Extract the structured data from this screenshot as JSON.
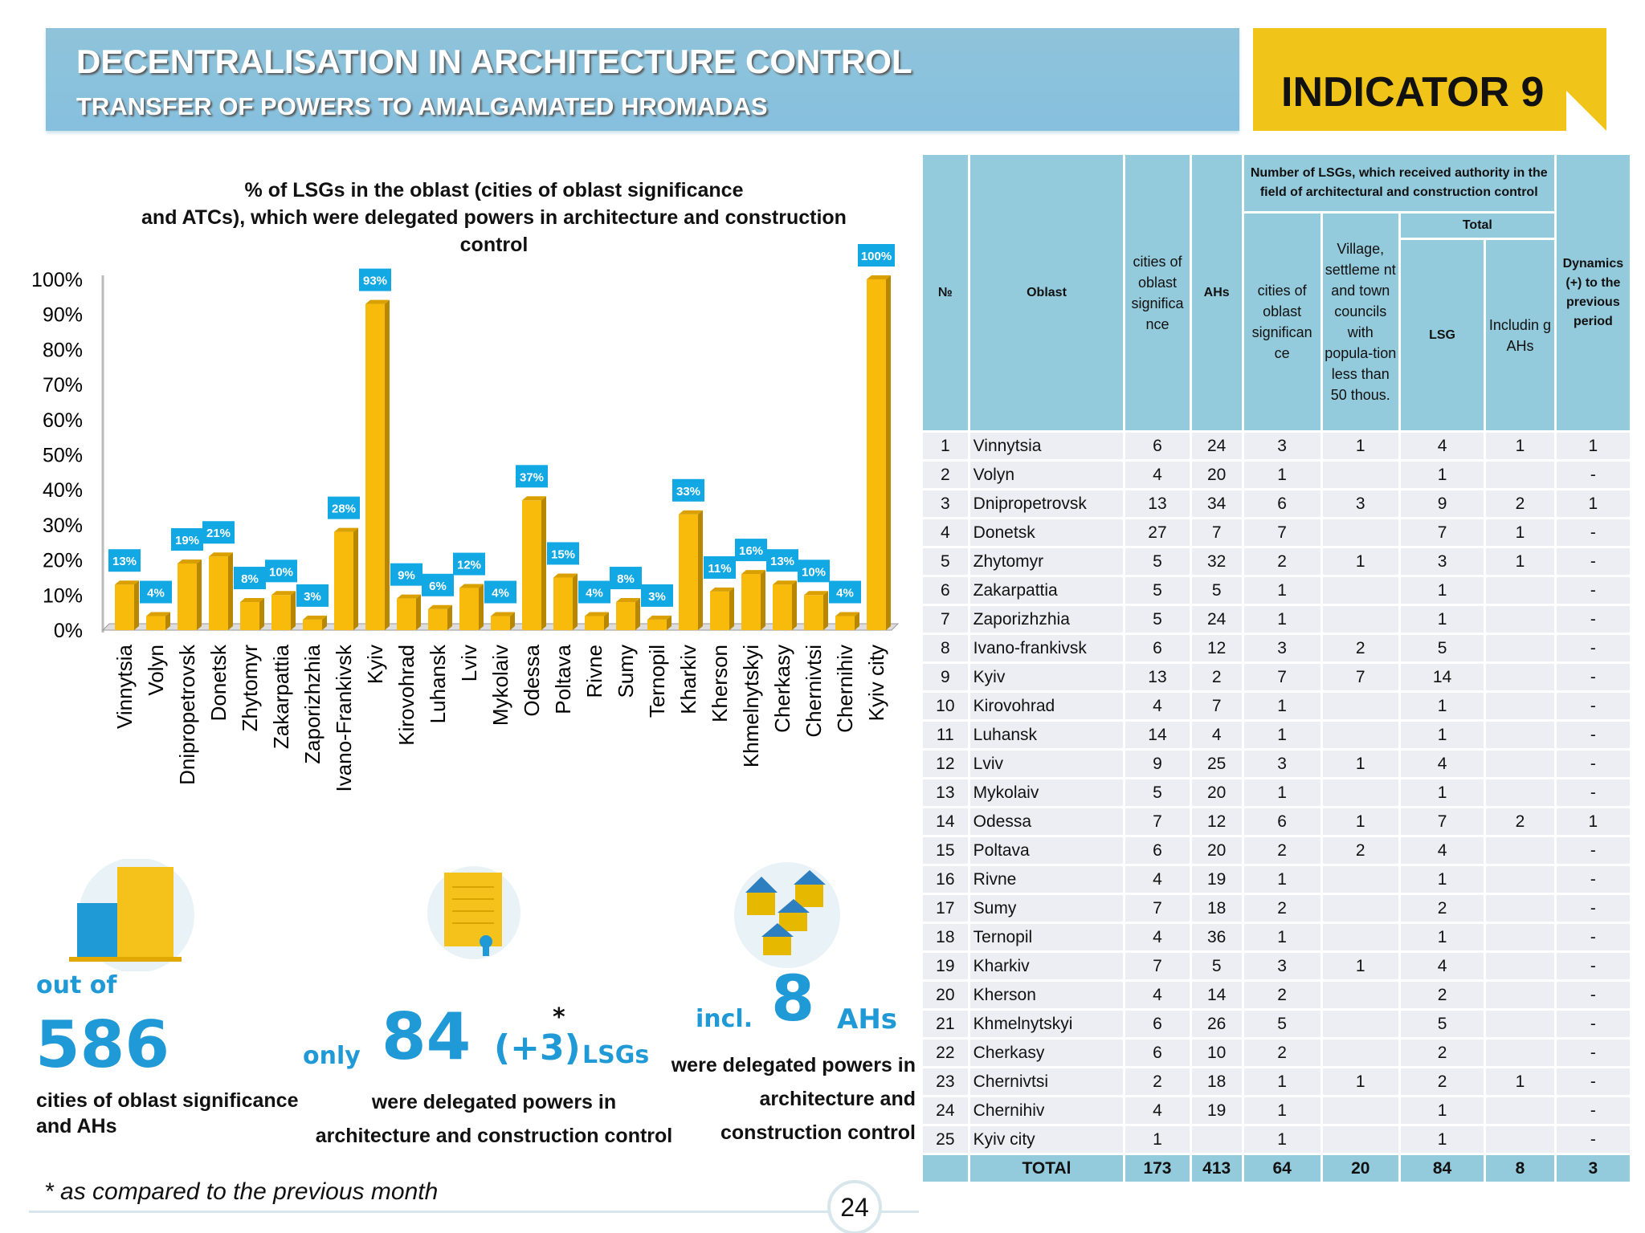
{
  "header": {
    "title": "DECENTRALISATION IN ARCHITECTURE CONTROL",
    "subtitle": "TRANSFER OF POWERS TO AMALGAMATED HROMADAS",
    "indicator": "INDICATOR 9"
  },
  "colors": {
    "bar": "#f8bb0b",
    "bar_side": "#b88700",
    "label_bg": "#12a8e3",
    "header_bg": "#8fc3da",
    "indicator_bg": "#f0c419",
    "accent_text": "#1f9ad6"
  },
  "chart_data": {
    "type": "bar",
    "title": "% of LSGs in the oblast (cities of oblast significance and ATCs), which were delegated powers in architecture and construction control",
    "title_lines": [
      "% of LSGs in the oblast (cities of oblast significance",
      "and ATCs), which were delegated powers in architecture and construction",
      "control"
    ],
    "categories": [
      "Vinnytsia",
      "Volyn",
      "Dnipropetrovsk",
      "Donetsk",
      "Zhytomyr",
      "Zakarpattia",
      "Zaporizhzhia",
      "Ivano-Frankivsk",
      "Kyiv",
      "Kirovohrad",
      "Luhansk",
      "Lviv",
      "Mykolaiv",
      "Odessa",
      "Poltava",
      "Rivne",
      "Sumy",
      "Ternopil",
      "Kharkiv",
      "Kherson",
      "Khmelnytskyi",
      "Cherkasy",
      "Chernivtsi",
      "Chernihiv",
      "Kyiv city"
    ],
    "values": [
      13,
      4,
      19,
      21,
      8,
      10,
      3,
      28,
      93,
      9,
      6,
      12,
      4,
      37,
      15,
      4,
      8,
      3,
      33,
      11,
      16,
      13,
      10,
      4,
      100
    ],
    "value_labels": [
      "13%",
      "4%",
      "19%",
      "21%",
      "8%",
      "10%",
      "3%",
      "28%",
      "93%",
      "9%",
      "6%",
      "12%",
      "4%",
      "37%",
      "15%",
      "4%",
      "8%",
      "3%",
      "33%",
      "11%",
      "16%",
      "13%",
      "10%",
      "4%",
      "100%"
    ],
    "yticks": [
      "0%",
      "10%",
      "20%",
      "30%",
      "40%",
      "50%",
      "60%",
      "70%",
      "80%",
      "90%",
      "100%"
    ],
    "ylim": [
      0,
      100
    ],
    "grid": false,
    "legend": "none"
  },
  "stats": {
    "s1_prefix": "out of",
    "s1_number": "586",
    "s1_caption_1": "cities of oblast significance",
    "s1_caption_2": "and AHs",
    "s2_prefix": "only",
    "s2_number": "84",
    "s2_delta": "(+3)",
    "s2_star": "*",
    "s2_suffix": "LSGs",
    "s2_caption_1": "were delegated powers in",
    "s2_caption_2": "architecture and construction control",
    "s3_prefix": "incl.",
    "s3_number": "8",
    "s3_suffix": "AHs",
    "s3_caption_1": "were delegated powers in",
    "s3_caption_2": "architecture and",
    "s3_caption_3": "construction control"
  },
  "footnote": "* as compared to the previous month",
  "page_number": "24",
  "table": {
    "headers": {
      "no": "№",
      "oblast": "Oblast",
      "cities": "cities of oblast significa nce",
      "ahs": "AHs",
      "group": "Number of LSGs, which received authority in the field of architectural and construction control",
      "g_cities": "cities of oblast significan ce",
      "g_village": "Village, settleme nt and town councils with popula-tion less than 50 thous.",
      "total": "Total",
      "lsg": "LSG",
      "incl_ahs": "Includin g AHs",
      "dynamics": "Dynamics (+) to the previous period"
    },
    "rows": [
      [
        "1",
        "Vinnytsia",
        "6",
        "24",
        "3",
        "1",
        "4",
        "1",
        "1"
      ],
      [
        "2",
        "Volyn",
        "4",
        "20",
        "1",
        "",
        "1",
        "",
        "-"
      ],
      [
        "3",
        "Dnipropetrovsk",
        "13",
        "34",
        "6",
        "3",
        "9",
        "2",
        "1"
      ],
      [
        "4",
        "Donetsk",
        "27",
        "7",
        "7",
        "",
        "7",
        "1",
        "-"
      ],
      [
        "5",
        "Zhytomyr",
        "5",
        "32",
        "2",
        "1",
        "3",
        "1",
        "-"
      ],
      [
        "6",
        "Zakarpattia",
        "5",
        "5",
        "1",
        "",
        "1",
        "",
        "-"
      ],
      [
        "7",
        "Zaporizhzhia",
        "5",
        "24",
        "1",
        "",
        "1",
        "",
        "-"
      ],
      [
        "8",
        "Ivano-frankivsk",
        "6",
        "12",
        "3",
        "2",
        "5",
        "",
        "-"
      ],
      [
        "9",
        "Kyiv",
        "13",
        "2",
        "7",
        "7",
        "14",
        "",
        "-"
      ],
      [
        "10",
        "Kirovohrad",
        "4",
        "7",
        "1",
        "",
        "1",
        "",
        "-"
      ],
      [
        "11",
        "Luhansk",
        "14",
        "4",
        "1",
        "",
        "1",
        "",
        "-"
      ],
      [
        "12",
        "Lviv",
        "9",
        "25",
        "3",
        "1",
        "4",
        "",
        "-"
      ],
      [
        "13",
        "Mykolaiv",
        "5",
        "20",
        "1",
        "",
        "1",
        "",
        "-"
      ],
      [
        "14",
        "Odessa",
        "7",
        "12",
        "6",
        "1",
        "7",
        "2",
        "1"
      ],
      [
        "15",
        "Poltava",
        "6",
        "20",
        "2",
        "2",
        "4",
        "",
        "-"
      ],
      [
        "16",
        "Rivne",
        "4",
        "19",
        "1",
        "",
        "1",
        "",
        "-"
      ],
      [
        "17",
        "Sumy",
        "7",
        "18",
        "2",
        "",
        "2",
        "",
        "-"
      ],
      [
        "18",
        "Ternopil",
        "4",
        "36",
        "1",
        "",
        "1",
        "",
        "-"
      ],
      [
        "19",
        "Kharkiv",
        "7",
        "5",
        "3",
        "1",
        "4",
        "",
        "-"
      ],
      [
        "20",
        "Kherson",
        "4",
        "14",
        "2",
        "",
        "2",
        "",
        "-"
      ],
      [
        "21",
        "Khmelnytskyi",
        "6",
        "26",
        "5",
        "",
        "5",
        "",
        "-"
      ],
      [
        "22",
        "Cherkasy",
        "6",
        "10",
        "2",
        "",
        "2",
        "",
        "-"
      ],
      [
        "23",
        "Chernivtsi",
        "2",
        "18",
        "1",
        "1",
        "2",
        "1",
        "-"
      ],
      [
        "24",
        "Chernihiv",
        "4",
        "19",
        "1",
        "",
        "1",
        "",
        "-"
      ],
      [
        "25",
        "Kyiv city",
        "1",
        "",
        "1",
        "",
        "1",
        "",
        "-"
      ]
    ],
    "total": [
      "",
      "TOTAl",
      "173",
      "413",
      "64",
      "20",
      "84",
      "8",
      "3"
    ]
  }
}
